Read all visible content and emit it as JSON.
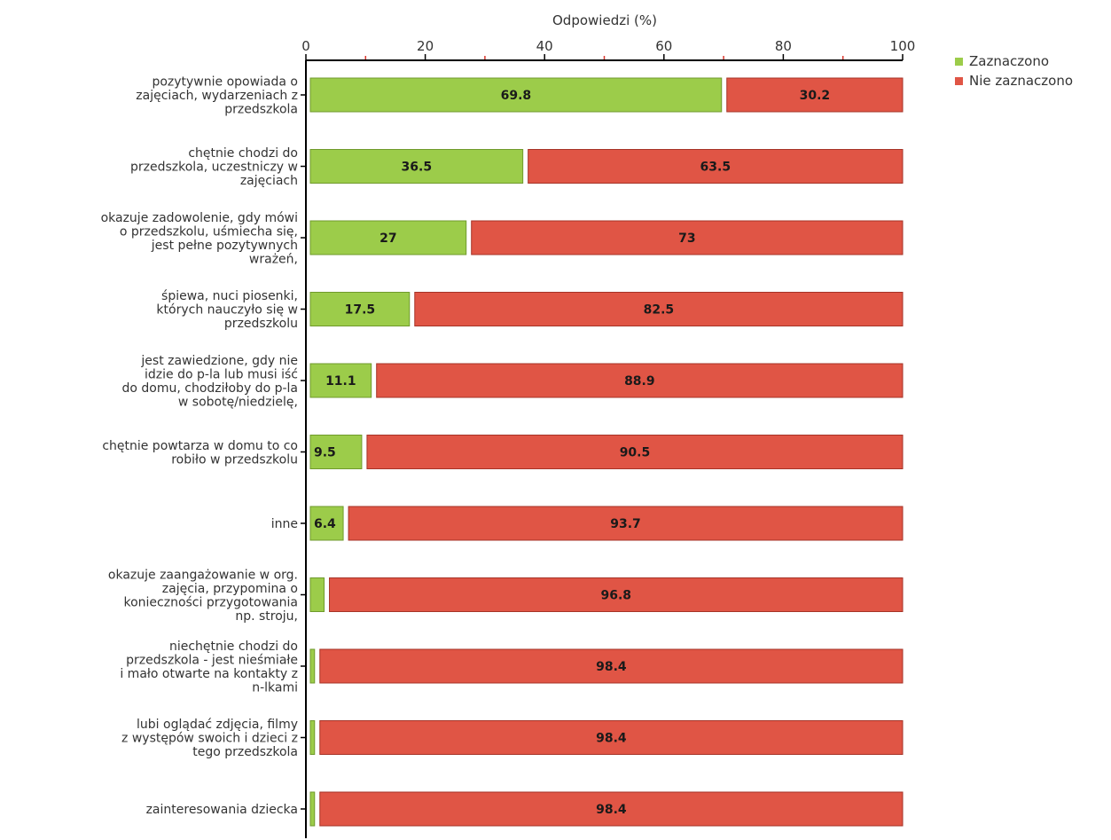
{
  "chart_data": {
    "type": "bar",
    "orientation": "horizontal",
    "stacked": true,
    "xlabel": "Odpowiedzi (%)",
    "xlim": [
      0,
      100
    ],
    "xticks": [
      0,
      20,
      40,
      60,
      80,
      100
    ],
    "grid": false,
    "legend_position": "top-right",
    "categories": [
      [
        "pozytywnie opowiada o",
        "zajęciach, wydarzeniach z",
        "przedszkola"
      ],
      [
        "chętnie chodzi do",
        "przedszkola, uczestniczy w",
        "zajęciach"
      ],
      [
        "okazuje zadowolenie, gdy mówi",
        "o przedszkolu, uśmiecha się,",
        "jest pełne pozytywnych",
        "wrażeń,"
      ],
      [
        "śpiewa, nuci piosenki,",
        "których nauczyło się w",
        "przedszkolu"
      ],
      [
        "jest zawiedzione, gdy nie",
        "idzie do p-la lub musi iść",
        "do domu,  chodziłoby do p-la",
        "w sobotę/niedzielę,"
      ],
      [
        "chętnie powtarza w domu to co",
        "robiło w przedszkolu"
      ],
      [
        "inne"
      ],
      [
        "okazuje zaangażowanie w org.",
        "zajęcia, przypomina o",
        "konieczności przygotowania",
        "np. stroju,"
      ],
      [
        "niechętnie chodzi do",
        "przedszkola - jest nieśmiałe",
        "i mało otwarte na kontakty z",
        "n-lkami"
      ],
      [
        "lubi oglądać zdjęcia, filmy",
        "z występów swoich i dzieci z",
        "tego przedszkola"
      ],
      [
        "zainteresowania dziecka"
      ]
    ],
    "series": [
      {
        "name": "Zaznaczono",
        "color": "#9ccc4a",
        "values": [
          69.8,
          36.5,
          27,
          17.5,
          11.1,
          9.5,
          6.4,
          3.2,
          1.6,
          1.6,
          1.6
        ],
        "labels": [
          "69.8",
          "36.5",
          "27",
          "17.5",
          "11.1",
          "9.5",
          "6.4",
          "",
          "",
          "",
          ""
        ]
      },
      {
        "name": "Nie zaznaczono",
        "color": "#e05545",
        "values": [
          30.2,
          63.5,
          73,
          82.5,
          88.9,
          90.5,
          93.7,
          96.8,
          98.4,
          98.4,
          98.4
        ],
        "labels": [
          "30.2",
          "63.5",
          "73",
          "82.5",
          "88.9",
          "90.5",
          "93.7",
          "96.8",
          "98.4",
          "98.4",
          "98.4"
        ]
      }
    ]
  }
}
